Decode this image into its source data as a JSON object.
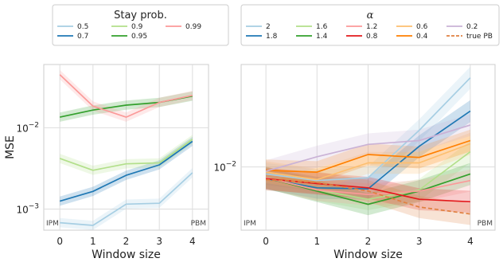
{
  "chart_data": [
    {
      "type": "line",
      "xlabel": "Window size",
      "ylabel": "MSE",
      "yscale": "log",
      "ylim": [
        0.00055,
        0.06
      ],
      "x": [
        0,
        1,
        2,
        3,
        4
      ],
      "x_ticks": [
        "0",
        "1",
        "2",
        "3",
        "4"
      ],
      "y_ticks": [
        {
          "v": 0.001,
          "base": "10",
          "exp": "−3"
        },
        {
          "v": 0.01,
          "base": "10",
          "exp": "−2"
        }
      ],
      "legend": {
        "title": "Stay prob.",
        "position": "top",
        "columns": 3
      },
      "grid": true,
      "annotations": {
        "left": "IPM",
        "right": "PBM"
      },
      "series": [
        {
          "name": "0.5",
          "color": "#a6cee3",
          "dash": false,
          "values": [
            0.00068,
            0.00063,
            0.00115,
            0.00118,
            0.0028
          ]
        },
        {
          "name": "0.7",
          "color": "#1f78b4",
          "dash": false,
          "values": [
            0.00125,
            0.00165,
            0.0026,
            0.0035,
            0.0068
          ]
        },
        {
          "name": "0.9",
          "color": "#b2df8a",
          "dash": false,
          "values": [
            0.0042,
            0.003,
            0.0036,
            0.0037,
            0.0072
          ]
        },
        {
          "name": "0.95",
          "color": "#33a02c",
          "dash": false,
          "values": [
            0.0135,
            0.0165,
            0.019,
            0.0205,
            0.0245
          ]
        },
        {
          "name": "0.99",
          "color": "#fb9a99",
          "dash": false,
          "values": [
            0.045,
            0.0185,
            0.0135,
            0.0205,
            0.025
          ]
        }
      ]
    },
    {
      "type": "line",
      "xlabel": "Window size",
      "ylabel": "",
      "yscale": "log",
      "ylim": [
        0.0047,
        0.034
      ],
      "x": [
        0,
        1,
        2,
        3,
        4
      ],
      "x_ticks": [
        "0",
        "1",
        "2",
        "3",
        "4"
      ],
      "y_ticks": [
        {
          "v": 0.01,
          "base": "10",
          "exp": "−2"
        }
      ],
      "legend": {
        "title": "α",
        "position": "top",
        "columns": 5
      },
      "grid": true,
      "annotations": {
        "left": "IPM",
        "right": "PBM"
      },
      "series": [
        {
          "name": "2",
          "color": "#a6cee3",
          "dash": false,
          "values": [
            0.0092,
            0.0085,
            0.0088,
            0.0155,
            0.029
          ]
        },
        {
          "name": "1.8",
          "color": "#1f78b4",
          "dash": false,
          "values": [
            0.0087,
            0.0078,
            0.0077,
            0.0128,
            0.0195
          ]
        },
        {
          "name": "1.6",
          "color": "#b2df8a",
          "dash": false,
          "values": [
            0.0088,
            0.0076,
            0.0068,
            0.0076,
            0.012
          ]
        },
        {
          "name": "1.4",
          "color": "#33a02c",
          "dash": false,
          "values": [
            0.0088,
            0.0075,
            0.0064,
            0.0075,
            0.0092
          ]
        },
        {
          "name": "1.2",
          "color": "#fb9a99",
          "dash": false,
          "values": [
            0.0088,
            0.0076,
            0.0072,
            0.0075,
            0.0085
          ]
        },
        {
          "name": "0.8",
          "color": "#e31a1c",
          "dash": false,
          "values": [
            0.0087,
            0.0082,
            0.0078,
            0.0068,
            0.0066
          ]
        },
        {
          "name": "0.6",
          "color": "#fdbf6f",
          "dash": false,
          "values": [
            0.0094,
            0.0086,
            0.0105,
            0.0105,
            0.0132
          ]
        },
        {
          "name": "0.4",
          "color": "#ff7f00",
          "dash": false,
          "values": [
            0.0096,
            0.0094,
            0.0116,
            0.0112,
            0.0137
          ]
        },
        {
          "name": "0.2",
          "color": "#cab2d6",
          "dash": false,
          "values": [
            0.0095,
            0.0113,
            0.0131,
            0.0137,
            0.0165
          ]
        },
        {
          "name": "true PB",
          "color": "#e08040",
          "dash": true,
          "values": [
            0.0086,
            0.0083,
            0.0075,
            0.0062,
            0.0057
          ]
        }
      ]
    }
  ]
}
